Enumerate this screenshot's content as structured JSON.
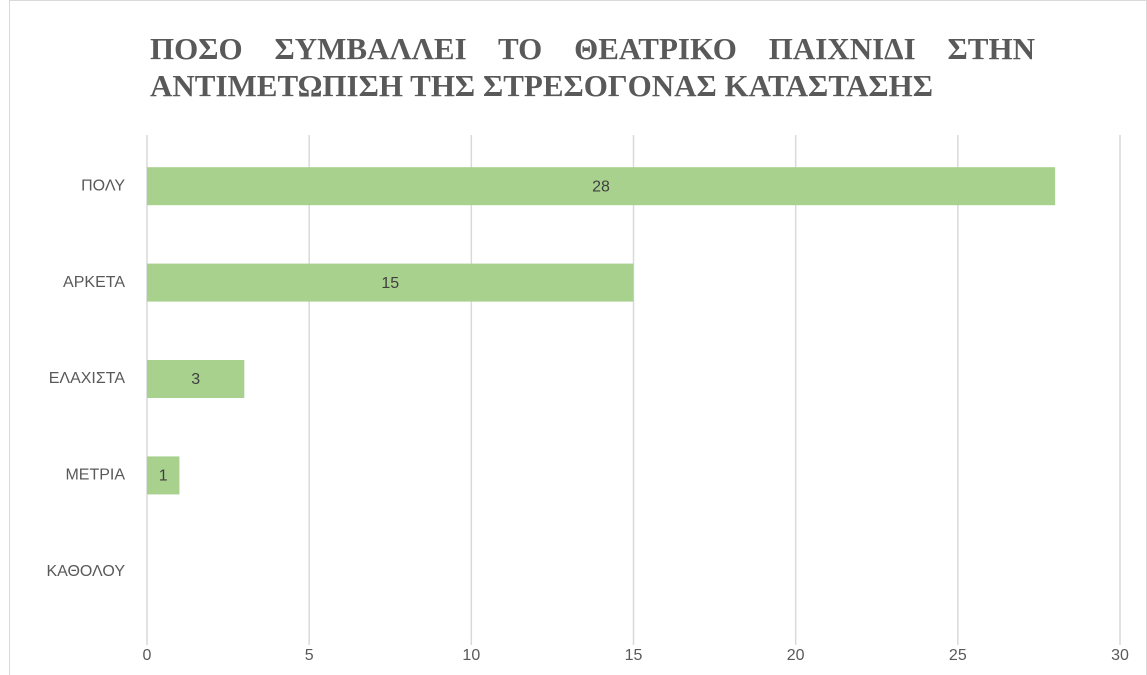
{
  "chart_data": {
    "type": "hbar",
    "title": "ΠΟΣΟ ΣΥΜΒΑΛΛΕΙ ΤΟ ΘΕΑΤΡΙΚΟ ΠΑΙΧΝΙΔΙ ΣΤΗΝ ΑΝΤΙΜΕΤΩΠΙΣΗ ΤΗΣ ΣΤΡΕΣΟΓΟΝΑΣ ΚΑΤΑΣΤΑΣΗΣ",
    "categories": [
      "ΠΟΛΥ",
      "ΑΡΚΕΤΑ",
      "ΕΛΑΧΙΣΤΑ",
      "ΜΕΤΡΙΑ",
      "ΚΑΘΟΛΟΥ"
    ],
    "values": [
      28,
      15,
      3,
      1,
      null
    ],
    "color": "#a9d18e",
    "xlim": [
      0,
      30
    ],
    "xticks": [
      0,
      5,
      10,
      15,
      20,
      25,
      30
    ],
    "grid": true
  }
}
